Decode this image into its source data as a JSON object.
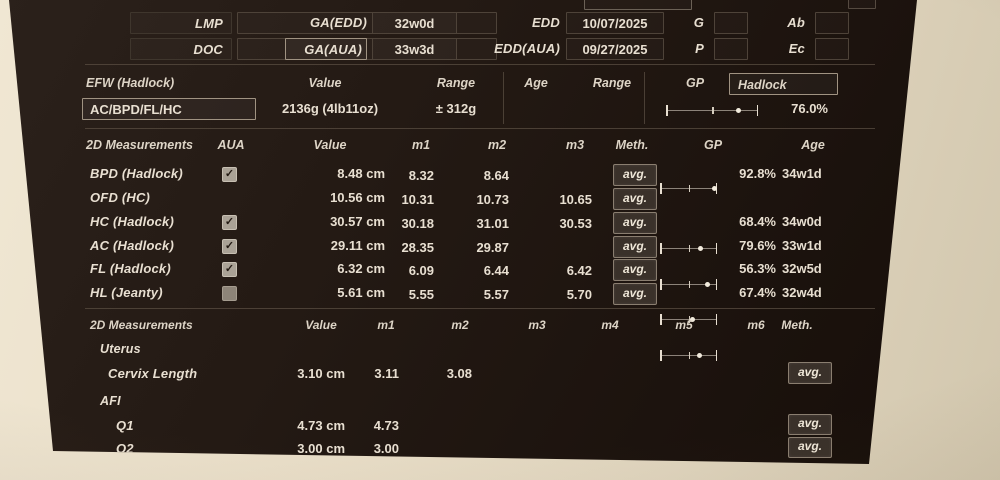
{
  "colors": {
    "screen_bg": "#241a14",
    "text": "#e8dfd1",
    "accent_border": "#a09382",
    "button_bg": "#3a312a",
    "paper_bg": "#e9dec8"
  },
  "demographics": {
    "rows": [
      {
        "label": "LMP",
        "value": "",
        "ga_label": "GA(EDD)",
        "ga_value": "32w0d",
        "edd_label": "EDD",
        "edd_value": "10/07/2025",
        "right1_label": "G",
        "right1_value": "",
        "right2_label": "Ab",
        "right2_value": ""
      },
      {
        "label": "DOC",
        "value": "",
        "ga_label": "GA(AUA)",
        "ga_value": "33w3d",
        "edd_label": "EDD(AUA)",
        "edd_value": "09/27/2025",
        "right1_label": "P",
        "right1_value": "",
        "right2_label": "Ec",
        "right2_value": ""
      }
    ]
  },
  "efw": {
    "title": "EFW (Hadlock)",
    "col_value": "Value",
    "col_range": "Range",
    "col_age": "Age",
    "col_range2": "Range",
    "col_gp": "GP",
    "method": "AC/BPD/FL/HC",
    "value": "2136g (4lb11oz)",
    "range": "± 312g",
    "age": "",
    "range2": "",
    "table": "Hadlock",
    "percentile": "76.0%"
  },
  "m2d": {
    "title": "2D Measurements",
    "cols": {
      "aua": "AUA",
      "value": "Value",
      "m1": "m1",
      "m2": "m2",
      "m3": "m3",
      "meth": "Meth.",
      "gp": "GP",
      "age": "Age"
    },
    "rows": [
      {
        "label": "BPD (Hadlock)",
        "aua": "checked",
        "value": "8.48 cm",
        "m1": "8.32",
        "m2": "8.64",
        "m3": "",
        "meth": "avg.",
        "gp": "92.8%",
        "age": "34w1d"
      },
      {
        "label": "OFD (HC)",
        "aua": "none",
        "value": "10.56 cm",
        "m1": "10.31",
        "m2": "10.73",
        "m3": "10.65",
        "meth": "avg.",
        "gp": "",
        "age": ""
      },
      {
        "label": "HC (Hadlock)",
        "aua": "checked",
        "value": "30.57 cm",
        "m1": "30.18",
        "m2": "31.01",
        "m3": "30.53",
        "meth": "avg.",
        "gp": "68.4%",
        "age": "34w0d"
      },
      {
        "label": "AC (Hadlock)",
        "aua": "checked",
        "value": "29.11 cm",
        "m1": "28.35",
        "m2": "29.87",
        "m3": "",
        "meth": "avg.",
        "gp": "79.6%",
        "age": "33w1d"
      },
      {
        "label": "FL (Hadlock)",
        "aua": "checked",
        "value": "6.32 cm",
        "m1": "6.09",
        "m2": "6.44",
        "m3": "6.42",
        "meth": "avg.",
        "gp": "56.3%",
        "age": "32w5d"
      },
      {
        "label": "HL (Jeanty)",
        "aua": "unchecked",
        "value": "5.61 cm",
        "m1": "5.55",
        "m2": "5.57",
        "m3": "5.70",
        "meth": "avg.",
        "gp": "67.4%",
        "age": "32w4d"
      }
    ]
  },
  "m2d2": {
    "title": "2D Measurements",
    "cols": {
      "value": "Value",
      "m1": "m1",
      "m2": "m2",
      "m3": "m3",
      "m4": "m4",
      "m5": "m5",
      "m6": "m6",
      "meth": "Meth."
    },
    "section_uterus": "Uterus",
    "cervix": {
      "label": "Cervix Length",
      "value": "3.10 cm",
      "m1": "3.11",
      "m2": "3.08",
      "meth": "avg."
    },
    "section_afi": "AFI",
    "q1": {
      "label": "Q1",
      "value": "4.73 cm",
      "m1": "4.73",
      "meth": "avg."
    },
    "q2": {
      "label": "Q2",
      "value": "3.00 cm",
      "m1": "3.00",
      "meth": "avg."
    }
  }
}
